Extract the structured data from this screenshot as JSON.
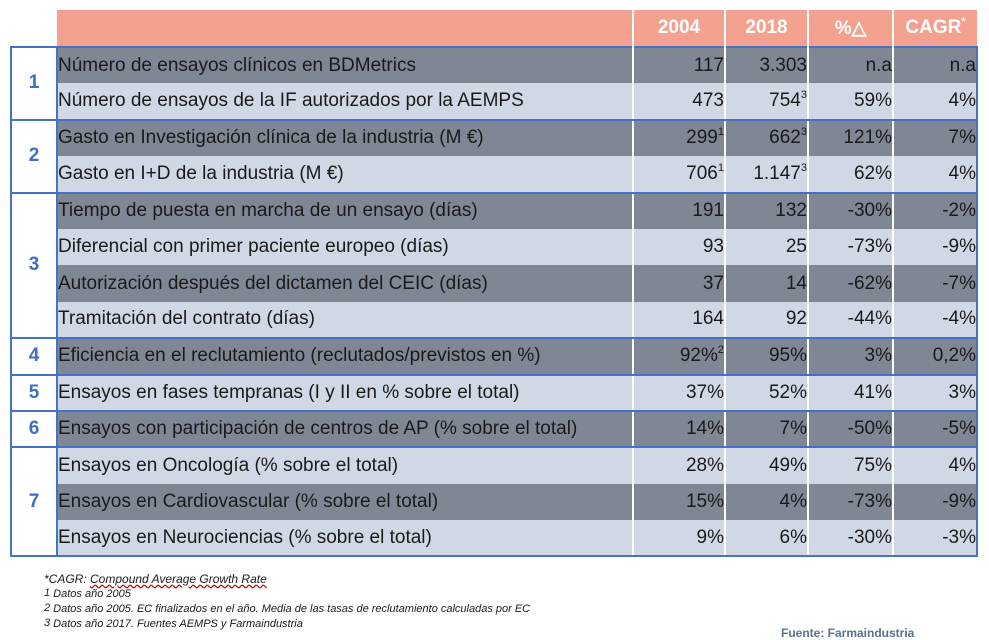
{
  "header": {
    "c2004": "2004",
    "c2018": "2018",
    "pct": "%△",
    "cagr": "CAGR",
    "cagr_mark": "*"
  },
  "groups": [
    {
      "num": "1",
      "rows": [
        {
          "label": "Número de ensayos clínicos en BDMetrics",
          "v2004": "117",
          "v2004_sup": "",
          "v2018": "3.303",
          "v2018_sup": "",
          "pct": "n.a",
          "cagr": "n.a"
        },
        {
          "label": "Número de ensayos de la IF autorizados por la AEMPS",
          "v2004": "473",
          "v2004_sup": "",
          "v2018": "754",
          "v2018_sup": "3",
          "pct": "59%",
          "cagr": "4%"
        }
      ]
    },
    {
      "num": "2",
      "rows": [
        {
          "label": "Gasto en Investigación clínica de la industria (M €)",
          "v2004": "299",
          "v2004_sup": "1",
          "v2018": "662",
          "v2018_sup": "3",
          "pct": "121%",
          "cagr": "7%"
        },
        {
          "label": "Gasto en I+D de la industria (M €)",
          "v2004": "706",
          "v2004_sup": "1",
          "v2018": "1.147",
          "v2018_sup": "3",
          "pct": "62%",
          "cagr": "4%"
        }
      ]
    },
    {
      "num": "3",
      "rows": [
        {
          "label": "Tiempo de puesta en marcha de un ensayo (días)",
          "v2004": "191",
          "v2004_sup": "",
          "v2018": "132",
          "v2018_sup": "",
          "pct": "-30%",
          "cagr": "-2%"
        },
        {
          "label": "Diferencial con primer paciente europeo (días)",
          "v2004": "93",
          "v2004_sup": "",
          "v2018": "25",
          "v2018_sup": "",
          "pct": "-73%",
          "cagr": "-9%"
        },
        {
          "label": "Autorización después del dictamen del CEIC (días)",
          "v2004": "37",
          "v2004_sup": "",
          "v2018": "14",
          "v2018_sup": "",
          "pct": "-62%",
          "cagr": "-7%"
        },
        {
          "label": "Tramitación del contrato (días)",
          "v2004": "164",
          "v2004_sup": "",
          "v2018": "92",
          "v2018_sup": "",
          "pct": "-44%",
          "cagr": "-4%"
        }
      ]
    },
    {
      "num": "4",
      "rows": [
        {
          "label": "Eficiencia en el reclutamiento (reclutados/previstos en %)",
          "v2004": "92%",
          "v2004_sup": "2",
          "v2018": "95%",
          "v2018_sup": "",
          "pct": "3%",
          "cagr": "0,2%"
        }
      ]
    },
    {
      "num": "5",
      "rows": [
        {
          "label": "Ensayos en fases tempranas (I y II en % sobre el total)",
          "v2004": "37%",
          "v2004_sup": "",
          "v2018": "52%",
          "v2018_sup": "",
          "pct": "41%",
          "cagr": "3%"
        }
      ]
    },
    {
      "num": "6",
      "rows": [
        {
          "label": "Ensayos con participación de centros de AP (% sobre el total)",
          "v2004": "14%",
          "v2004_sup": "",
          "v2018": "7%",
          "v2018_sup": "",
          "pct": "-50%",
          "cagr": "-5%"
        }
      ]
    },
    {
      "num": "7",
      "rows": [
        {
          "label": "Ensayos en Oncología (% sobre el total)",
          "v2004": "28%",
          "v2004_sup": "",
          "v2018": "49%",
          "v2018_sup": "",
          "pct": "75%",
          "cagr": "4%"
        },
        {
          "label": "Ensayos en Cardiovascular (% sobre el total)",
          "v2004": "15%",
          "v2004_sup": "",
          "v2018": "4%",
          "v2018_sup": "",
          "pct": "-73%",
          "cagr": "-9%"
        },
        {
          "label": "Ensayos en Neurociencias (% sobre el total)",
          "v2004": "9%",
          "v2004_sup": "",
          "v2018": "6%",
          "v2018_sup": "",
          "pct": "-30%",
          "cagr": "-3%"
        }
      ]
    }
  ],
  "notes": {
    "n_star_prefix": "*CAGR: ",
    "n_star_term": "Compound  Average Growth Rate",
    "n1_mark": "1",
    "n1_text": " Datos año 2005",
    "n2_mark": "2",
    "n2_text": " Datos año 2005. EC finalizados  en el año. Media de las tasas de reclutamiento calculadas por EC",
    "n3_mark": "3",
    "n3_text": " Datos año 2017. Fuentes AEMPS y Farmaindustria"
  },
  "source": "Fuente: Farmaindustria",
  "colors": {
    "header_bg": "#f4a28f",
    "row_dark": "#7f8795",
    "row_light": "#cfd8e4",
    "border_blue": "#4472c4",
    "group_number": "#3a6fc4"
  }
}
